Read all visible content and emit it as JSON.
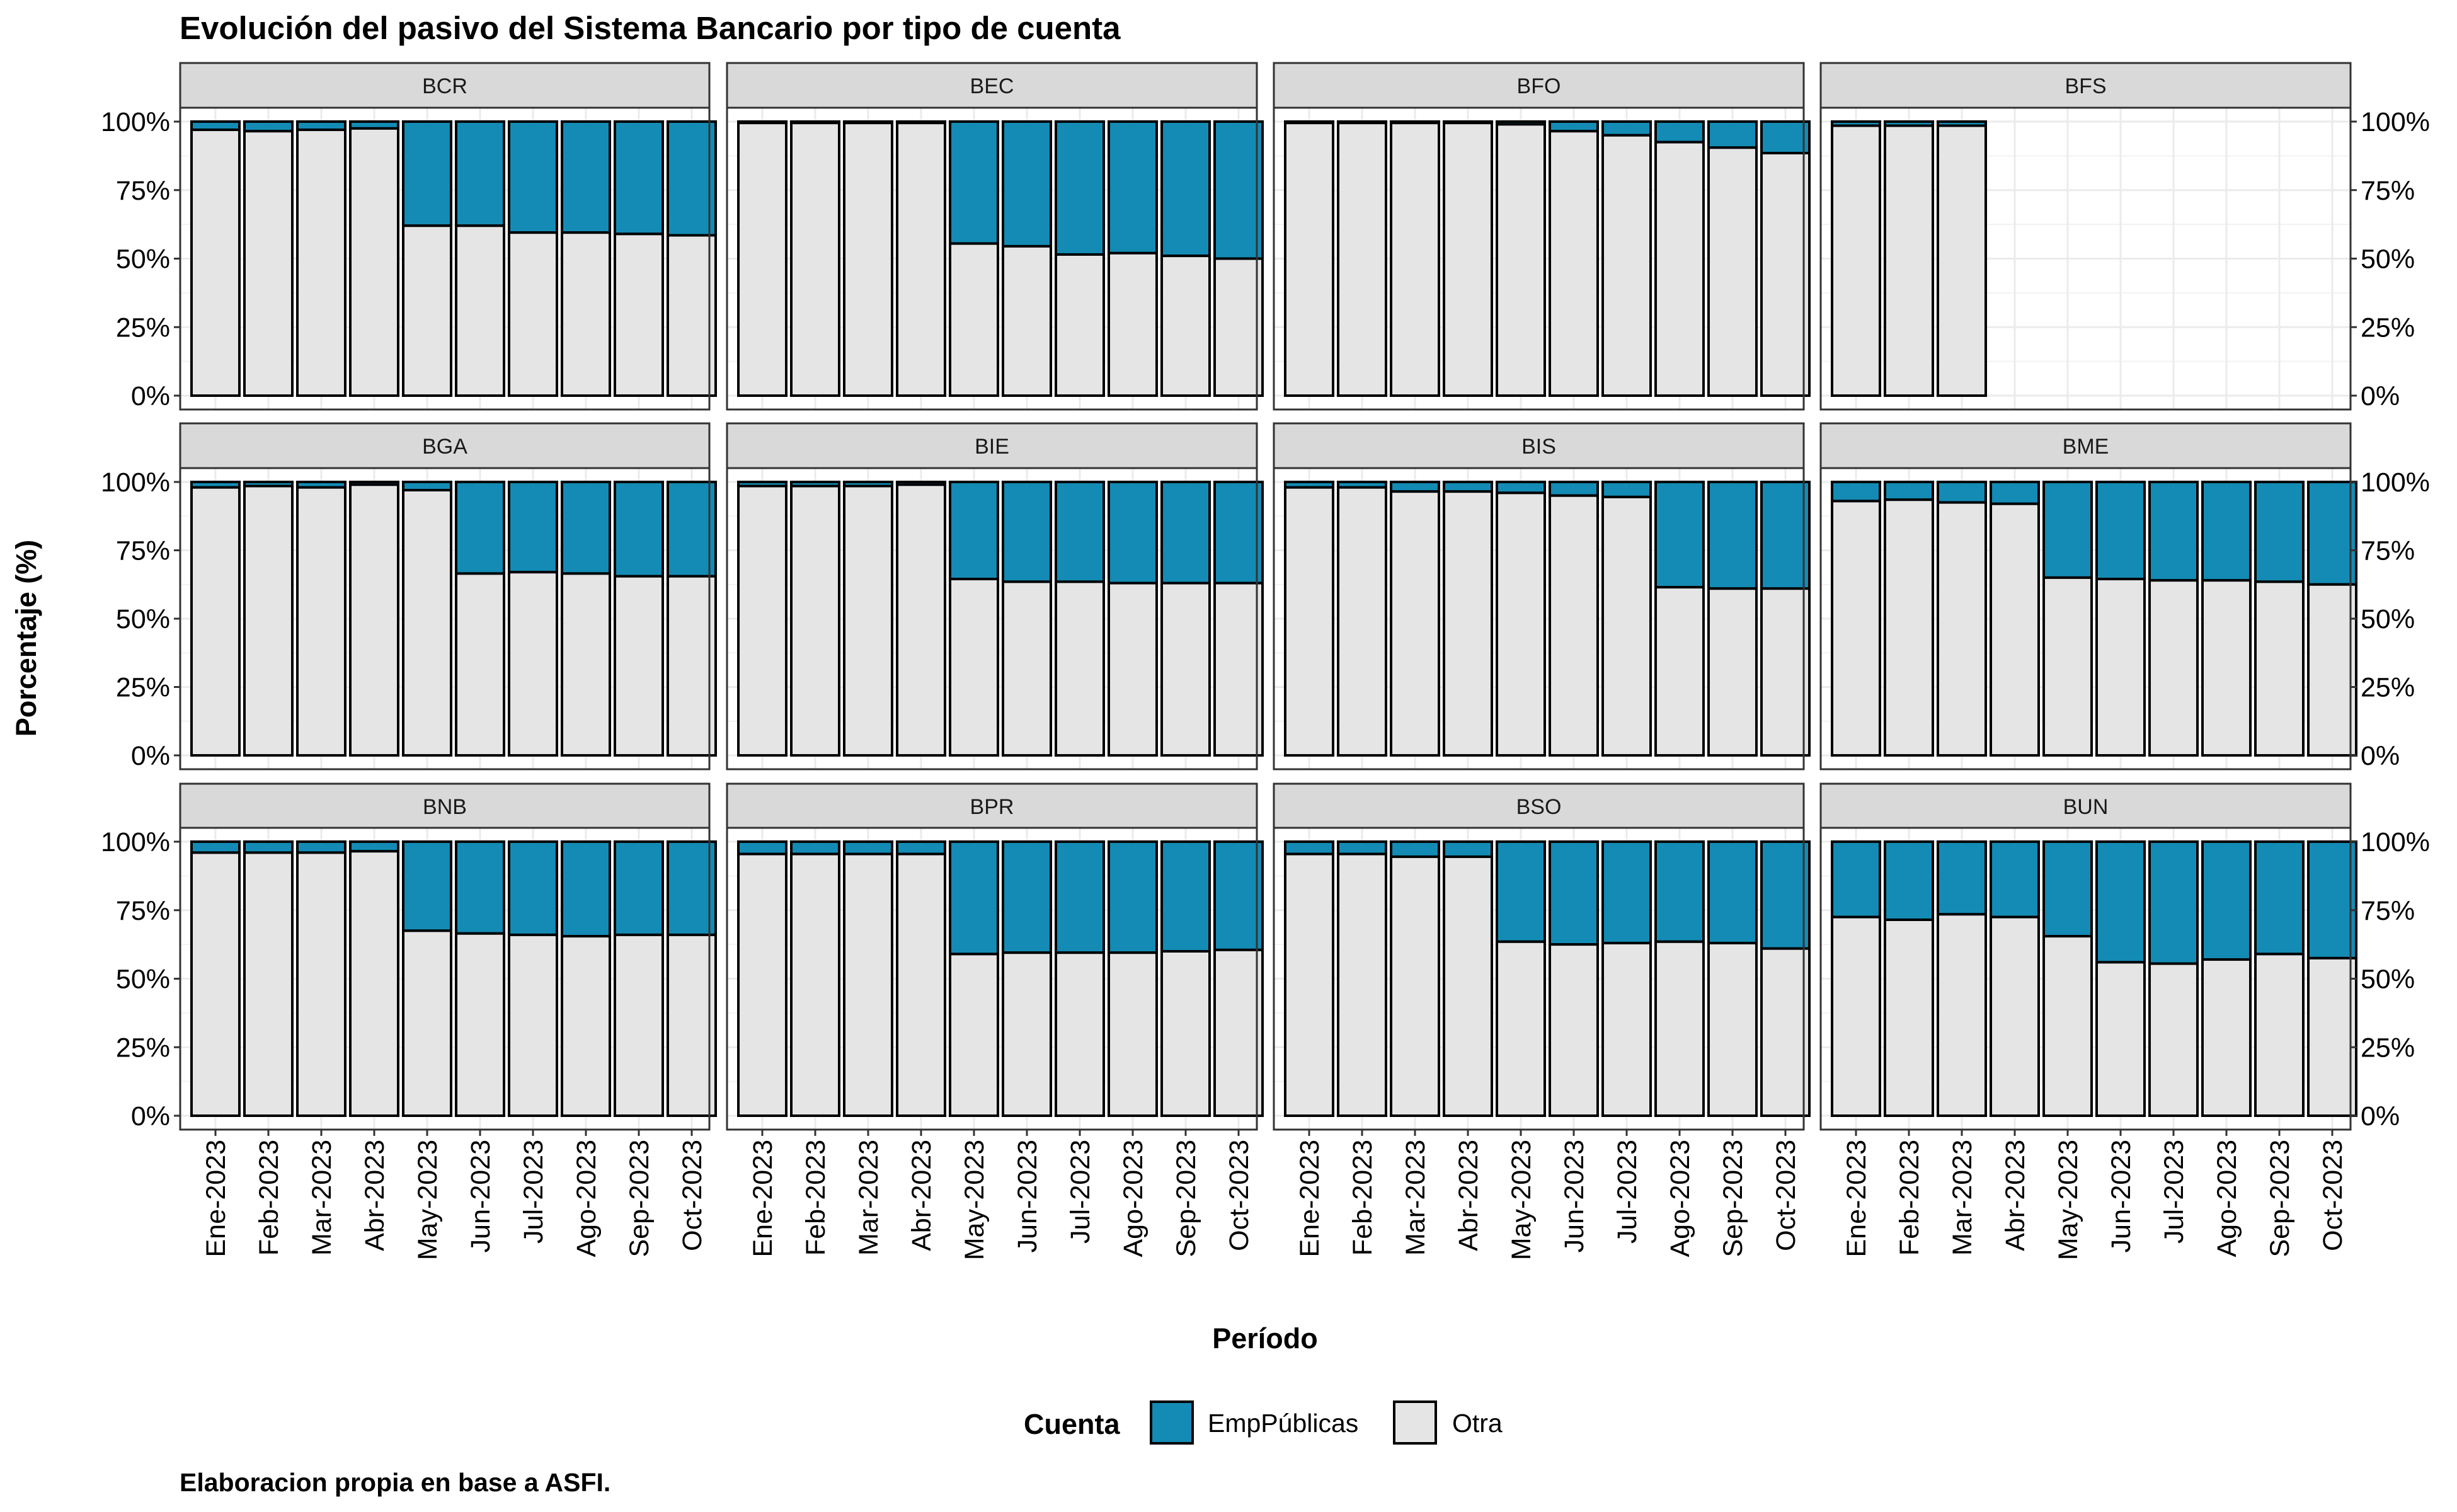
{
  "chart_data": {
    "type": "bar",
    "stacked": true,
    "faceted": true,
    "title": "Evolución del pasivo del Sistema Bancario por tipo de cuenta",
    "xlabel": "Período",
    "ylabel": "Porcentaje (%)",
    "caption": "Elaboracion propia en base a ASFI.",
    "legend": {
      "title": "Cuenta",
      "position": "bottom",
      "items": [
        {
          "name": "EmpPúblicas",
          "color": "#138BB4"
        },
        {
          "name": "Otra",
          "color": "#E5E5E5"
        }
      ]
    },
    "categories": [
      "Ene-2023",
      "Feb-2023",
      "Mar-2023",
      "Abr-2023",
      "May-2023",
      "Jun-2023",
      "Jul-2023",
      "Ago-2023",
      "Sep-2023",
      "Oct-2023"
    ],
    "ylim": [
      0,
      100
    ],
    "yticks": [
      0,
      25,
      50,
      75,
      100
    ],
    "ytick_labels": [
      "0%",
      "25%",
      "50%",
      "75%",
      "100%"
    ],
    "grid": true,
    "panels": [
      {
        "name": "BCR",
        "otra": [
          97,
          96.5,
          97,
          97.5,
          62,
          62,
          59.5,
          59.5,
          59,
          58.5
        ]
      },
      {
        "name": "BEC",
        "otra": [
          99.5,
          99.5,
          99.5,
          99.5,
          55.5,
          54.5,
          51.5,
          52,
          51,
          50
        ]
      },
      {
        "name": "BFO",
        "otra": [
          99.5,
          99.5,
          99.5,
          99.5,
          99,
          96.5,
          95,
          92.5,
          90.5,
          88.5
        ]
      },
      {
        "name": "BFS",
        "otra": [
          98.5,
          98.5,
          98.5,
          null,
          null,
          null,
          null,
          null,
          null,
          null
        ]
      },
      {
        "name": "BGA",
        "otra": [
          98,
          98.5,
          98,
          99,
          97,
          66.5,
          67,
          66.5,
          65.5,
          65.5
        ]
      },
      {
        "name": "BIE",
        "otra": [
          98.5,
          98.5,
          98.5,
          99,
          64.5,
          63.5,
          63.5,
          63,
          63,
          63
        ]
      },
      {
        "name": "BIS",
        "otra": [
          98,
          98,
          96.5,
          96.5,
          96,
          95,
          94.5,
          61.5,
          61,
          61
        ]
      },
      {
        "name": "BME",
        "otra": [
          93,
          93.5,
          92.5,
          92,
          65,
          64.5,
          64,
          64,
          63.5,
          62.5
        ]
      },
      {
        "name": "BNB",
        "otra": [
          96,
          96,
          96,
          96.5,
          67.5,
          66.5,
          66,
          65.5,
          66,
          66
        ]
      },
      {
        "name": "BPR",
        "otra": [
          95.5,
          95.5,
          95.5,
          95.5,
          59,
          59.5,
          59.5,
          59.5,
          60,
          60.5
        ]
      },
      {
        "name": "BSO",
        "otra": [
          95.5,
          95.5,
          94.5,
          94.5,
          63.5,
          62.5,
          63,
          63.5,
          63,
          61
        ]
      },
      {
        "name": "BUN",
        "otra": [
          72.5,
          71.5,
          73.5,
          72.5,
          65.5,
          56,
          55.5,
          57,
          59,
          57.5
        ]
      }
    ],
    "series": [
      {
        "name": "EmpPúblicas",
        "color": "#138BB4",
        "note_values": "100 - otra"
      },
      {
        "name": "Otra",
        "color": "#E5E5E5"
      }
    ]
  }
}
